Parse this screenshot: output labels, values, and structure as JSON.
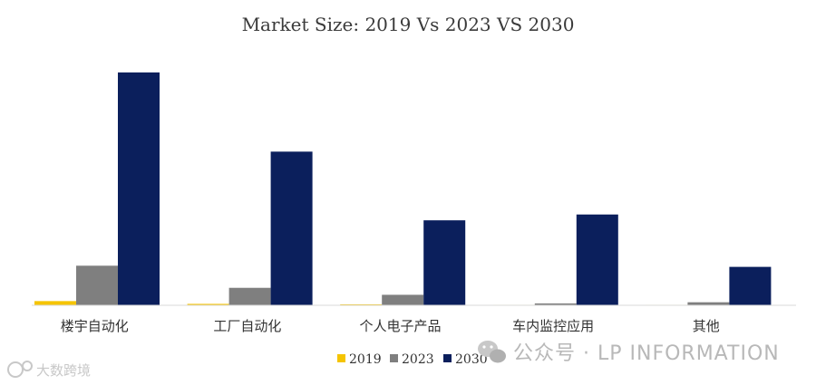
{
  "chart_data": {
    "type": "bar",
    "title": "Market Size: 2019 Vs 2023 VS 2030",
    "categories": [
      "楼宇自动化",
      "工厂自动化",
      "个人电子产品",
      "车内监控应用",
      "其他"
    ],
    "series": [
      {
        "name": "2019",
        "color": "#f5c400",
        "values": [
          1.8,
          0.6,
          0.4,
          0.2,
          0.2
        ]
      },
      {
        "name": "2023",
        "color": "#7f7f7f",
        "values": [
          17,
          7.5,
          4.5,
          0.8,
          1.3
        ]
      },
      {
        "name": "2030",
        "color": "#0b1f5c",
        "values": [
          100,
          66,
          36.5,
          39,
          16.5
        ]
      }
    ],
    "ylim": [
      0,
      100
    ],
    "grid": false,
    "legend_position": "bottom-center"
  },
  "watermarks": {
    "wechat": "公众号 · LP INFORMATION",
    "brand": "大数跨境"
  }
}
